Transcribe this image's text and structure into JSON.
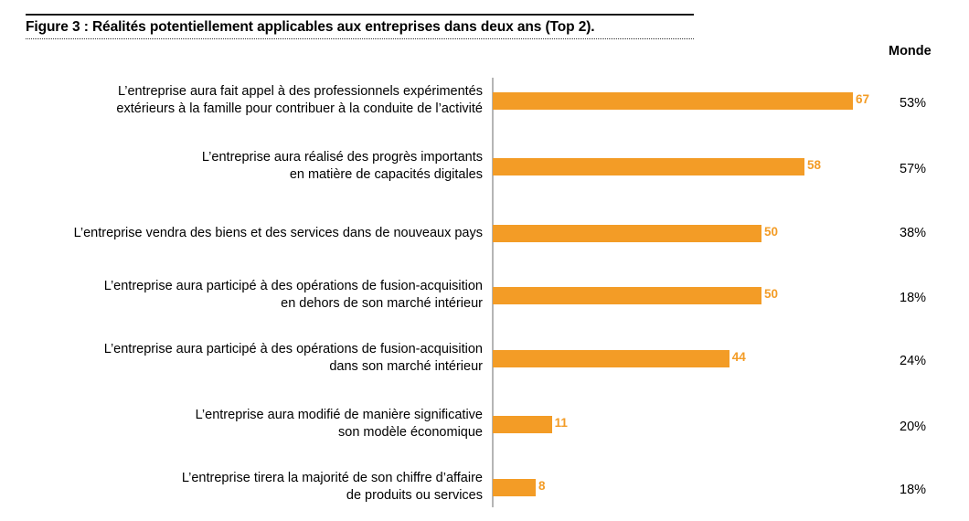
{
  "chart_data": {
    "type": "bar",
    "orientation": "horizontal",
    "title": "Figure 3 : Réalités potentiellement applicables aux entreprises dans deux ans (Top 2).",
    "xlabel": "",
    "ylabel": "",
    "xlim": [
      0,
      100
    ],
    "grid": false,
    "bar_color": "#f39c26",
    "label_color": "#f39c26",
    "extra_column_header": "Monde",
    "categories": [
      [
        "L’entreprise aura fait appel à des professionnels expérimentés",
        "extérieurs à la famille pour contribuer à la conduite de l’activité"
      ],
      [
        "L’entreprise aura réalisé des progrès importants",
        "en matière de capacités digitales"
      ],
      [
        "L’entreprise vendra des biens et des services dans de nouveaux pays"
      ],
      [
        "L’entreprise aura participé à des opérations de fusion-acquisition",
        "en dehors de son marché intérieur"
      ],
      [
        "L’entreprise aura participé à des opérations de fusion-acquisition",
        "dans son marché intérieur"
      ],
      [
        "L’entreprise aura modifié de manière significative",
        "son modèle économique"
      ],
      [
        "L’entreprise tirera la majorité de son chiffre d’affaire",
        "de produits ou services"
      ]
    ],
    "values": [
      67,
      58,
      50,
      50,
      44,
      11,
      8
    ],
    "monde": [
      "53%",
      "57%",
      "38%",
      "18%",
      "24%",
      "20%",
      "18%"
    ]
  }
}
